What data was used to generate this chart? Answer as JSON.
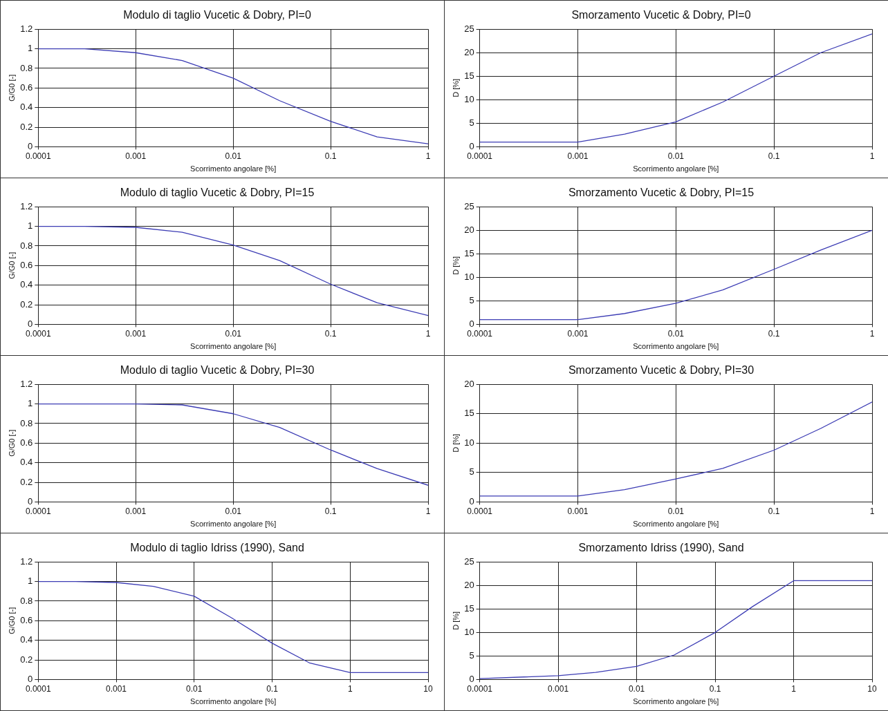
{
  "chart_data": [
    {
      "type": "line",
      "title": "Modulo di taglio Vucetic & Dobry, PI=0",
      "xlabel": "Scorrimento angolare [%]",
      "ylabel": "G/G0 [-]",
      "log": "x",
      "grid": true,
      "xlim": [
        0.0001,
        1
      ],
      "xticks": [
        0.0001,
        0.001,
        0.01,
        0.1,
        1
      ],
      "ylim": [
        0,
        1.2
      ],
      "yticks": [
        0,
        0.2,
        0.4,
        0.6,
        0.8,
        1,
        1.2
      ],
      "x": [
        0.0001,
        0.0003,
        0.001,
        0.003,
        0.01,
        0.03,
        0.1,
        0.3,
        1
      ],
      "series": [
        {
          "color": "#3c3cb4",
          "values": [
            1,
            1,
            0.96,
            0.88,
            0.7,
            0.47,
            0.26,
            0.1,
            0.03
          ]
        }
      ]
    },
    {
      "type": "line",
      "title": "Smorzamento Vucetic & Dobry, PI=0",
      "xlabel": "Scorrimento angolare [%]",
      "ylabel": "D [%]",
      "log": "x",
      "grid": true,
      "xlim": [
        0.0001,
        1
      ],
      "xticks": [
        0.0001,
        0.001,
        0.01,
        0.1,
        1
      ],
      "ylim": [
        0,
        25
      ],
      "yticks": [
        0,
        5,
        10,
        15,
        20,
        25
      ],
      "x": [
        0.0001,
        0.001,
        0.003,
        0.01,
        0.03,
        0.1,
        0.3,
        1
      ],
      "series": [
        {
          "color": "#3c3cb4",
          "values": [
            1,
            1,
            2.7,
            5.3,
            9.5,
            15,
            20,
            24
          ]
        }
      ]
    },
    {
      "type": "line",
      "title": "Modulo di taglio Vucetic & Dobry, PI=15",
      "xlabel": "Scorrimento angolare [%]",
      "ylabel": "G/G0 [-]",
      "log": "x",
      "grid": true,
      "xlim": [
        0.0001,
        1
      ],
      "xticks": [
        0.0001,
        0.001,
        0.01,
        0.1,
        1
      ],
      "ylim": [
        0,
        1.2
      ],
      "yticks": [
        0,
        0.2,
        0.4,
        0.6,
        0.8,
        1,
        1.2
      ],
      "x": [
        0.0001,
        0.0003,
        0.001,
        0.003,
        0.01,
        0.03,
        0.1,
        0.3,
        1
      ],
      "series": [
        {
          "color": "#3c3cb4",
          "values": [
            1,
            1,
            0.99,
            0.94,
            0.81,
            0.65,
            0.41,
            0.22,
            0.09
          ]
        }
      ]
    },
    {
      "type": "line",
      "title": "Smorzamento Vucetic & Dobry, PI=15",
      "xlabel": "Scorrimento angolare [%]",
      "ylabel": "D [%]",
      "log": "x",
      "grid": true,
      "xlim": [
        0.0001,
        1
      ],
      "xticks": [
        0.0001,
        0.001,
        0.01,
        0.1,
        1
      ],
      "ylim": [
        0,
        25
      ],
      "yticks": [
        0,
        5,
        10,
        15,
        20,
        25
      ],
      "x": [
        0.0001,
        0.001,
        0.003,
        0.01,
        0.03,
        0.1,
        0.3,
        1
      ],
      "series": [
        {
          "color": "#3c3cb4",
          "values": [
            1,
            1,
            2.3,
            4.5,
            7.3,
            11.7,
            15.8,
            20
          ]
        }
      ]
    },
    {
      "type": "line",
      "title": "Modulo di taglio Vucetic & Dobry, PI=30",
      "xlabel": "Scorrimento angolare [%]",
      "ylabel": "G/G0 [-]",
      "log": "x",
      "grid": true,
      "xlim": [
        0.0001,
        1
      ],
      "xticks": [
        0.0001,
        0.001,
        0.01,
        0.1,
        1
      ],
      "ylim": [
        0,
        1.2
      ],
      "yticks": [
        0,
        0.2,
        0.4,
        0.6,
        0.8,
        1,
        1.2
      ],
      "x": [
        0.0001,
        0.0003,
        0.001,
        0.003,
        0.01,
        0.03,
        0.1,
        0.3,
        1
      ],
      "series": [
        {
          "color": "#3c3cb4",
          "values": [
            1,
            1,
            1,
            0.99,
            0.9,
            0.76,
            0.53,
            0.34,
            0.17
          ]
        }
      ]
    },
    {
      "type": "line",
      "title": "Smorzamento Vucetic & Dobry, PI=30",
      "xlabel": "Scorrimento angolare [%]",
      "ylabel": "D [%]",
      "log": "x",
      "grid": true,
      "xlim": [
        0.0001,
        1
      ],
      "xticks": [
        0.0001,
        0.001,
        0.01,
        0.1,
        1
      ],
      "ylim": [
        0,
        20
      ],
      "yticks": [
        0,
        5,
        10,
        15,
        20
      ],
      "x": [
        0.0001,
        0.001,
        0.003,
        0.01,
        0.03,
        0.1,
        0.3,
        1
      ],
      "series": [
        {
          "color": "#3c3cb4",
          "values": [
            1,
            1,
            2.1,
            3.9,
            5.7,
            8.8,
            12.5,
            17
          ]
        }
      ]
    },
    {
      "type": "line",
      "title": "Modulo di taglio Idriss (1990), Sand",
      "xlabel": "Scorrimento angolare [%]",
      "ylabel": "G/G0 [-]",
      "log": "x",
      "grid": true,
      "xlim": [
        0.0001,
        10
      ],
      "xticks": [
        0.0001,
        0.001,
        0.01,
        0.1,
        1,
        10
      ],
      "ylim": [
        0,
        1.2
      ],
      "yticks": [
        0,
        0.2,
        0.4,
        0.6,
        0.8,
        1,
        1.2
      ],
      "x": [
        0.0001,
        0.0003,
        0.001,
        0.003,
        0.01,
        0.03,
        0.1,
        0.3,
        1,
        10
      ],
      "series": [
        {
          "color": "#3c3cb4",
          "values": [
            1,
            1,
            0.99,
            0.95,
            0.85,
            0.63,
            0.37,
            0.17,
            0.07,
            0.07
          ]
        }
      ]
    },
    {
      "type": "line",
      "title": "Smorzamento Idriss (1990), Sand",
      "xlabel": "Scorrimento angolare [%]",
      "ylabel": "D [%]",
      "log": "x",
      "grid": true,
      "xlim": [
        0.0001,
        10
      ],
      "xticks": [
        0.0001,
        0.001,
        0.01,
        0.1,
        1,
        10
      ],
      "ylim": [
        0,
        25
      ],
      "yticks": [
        0,
        5,
        10,
        15,
        20,
        25
      ],
      "x": [
        0.0001,
        0.001,
        0.003,
        0.01,
        0.03,
        0.1,
        0.3,
        1,
        10
      ],
      "series": [
        {
          "color": "#3c3cb4",
          "values": [
            0.2,
            0.8,
            1.5,
            2.8,
            5.2,
            10,
            15.5,
            21,
            21
          ]
        }
      ]
    }
  ]
}
